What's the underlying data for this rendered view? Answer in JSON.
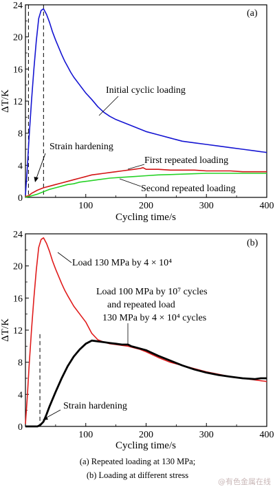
{
  "captions": {
    "line1": "(a) Repeated loading at 130 MPa;",
    "line2": "(b) Loading at different stress"
  },
  "watermark": "@有色金属在线",
  "chart_data": [
    {
      "type": "line",
      "panel_label": "(a)",
      "xlabel": "Cycling time/s",
      "ylabel": "ΔT/K",
      "xlim": [
        0,
        400
      ],
      "ylim": [
        0,
        24
      ],
      "xticks": [
        100,
        200,
        300,
        400
      ],
      "yticks": [
        0,
        4,
        8,
        12,
        16,
        20,
        24
      ],
      "series": [
        {
          "name": "Initial cyclic loading",
          "color": "#1414d2",
          "x": [
            0,
            3,
            6,
            10,
            14,
            18,
            22,
            26,
            30,
            35,
            40,
            45,
            50,
            55,
            60,
            65,
            70,
            75,
            80,
            90,
            100,
            110,
            120,
            130,
            140,
            150,
            160,
            170,
            180,
            190,
            200,
            220,
            240,
            260,
            280,
            300,
            320,
            340,
            360,
            380,
            400
          ],
          "y": [
            0.3,
            3.5,
            7.5,
            12.0,
            16.0,
            19.5,
            22.3,
            23.3,
            23.5,
            22.8,
            21.8,
            20.6,
            19.6,
            18.7,
            17.8,
            17.0,
            16.3,
            15.6,
            15.0,
            14.0,
            13.0,
            12.2,
            11.3,
            10.6,
            10.1,
            9.7,
            9.4,
            9.1,
            8.8,
            8.5,
            8.2,
            7.8,
            7.4,
            7.0,
            6.8,
            6.6,
            6.4,
            6.2,
            6.0,
            5.8,
            5.6
          ]
        },
        {
          "name": "First repeated loading",
          "color": "#d21414",
          "x": [
            0,
            5,
            10,
            20,
            30,
            40,
            50,
            60,
            70,
            80,
            90,
            100,
            110,
            120,
            130,
            140,
            150,
            160,
            170,
            180,
            190,
            195,
            200,
            220,
            240,
            260,
            280,
            300,
            320,
            340,
            360,
            380,
            400
          ],
          "y": [
            0.1,
            0.2,
            0.5,
            0.9,
            1.2,
            1.4,
            1.6,
            1.8,
            2.0,
            2.2,
            2.4,
            2.6,
            2.8,
            2.9,
            3.0,
            3.1,
            3.2,
            3.3,
            3.4,
            3.5,
            3.6,
            3.7,
            3.5,
            3.5,
            3.4,
            3.4,
            3.4,
            3.3,
            3.3,
            3.3,
            3.2,
            3.2,
            3.2
          ]
        },
        {
          "name": "Second repeated loading",
          "color": "#26d226",
          "x": [
            0,
            10,
            20,
            30,
            40,
            50,
            60,
            70,
            80,
            90,
            100,
            120,
            140,
            160,
            180,
            200,
            220,
            240,
            260,
            280,
            300,
            320,
            340,
            360,
            380,
            400
          ],
          "y": [
            0.0,
            0.2,
            0.4,
            0.7,
            1.0,
            1.2,
            1.4,
            1.6,
            1.7,
            1.9,
            2.0,
            2.2,
            2.4,
            2.5,
            2.6,
            2.7,
            2.8,
            2.85,
            2.9,
            2.95,
            3.0,
            3.0,
            3.0,
            3.0,
            3.0,
            3.0
          ]
        }
      ],
      "dashed_lines_x": [
        5,
        30
      ],
      "annotations": [
        {
          "text": "Initial cyclic loading",
          "series": "Initial cyclic loading"
        },
        {
          "text": "Strain hardening"
        },
        {
          "text": "First repeated loading",
          "series": "First repeated loading"
        },
        {
          "text": "Second repeated loading",
          "series": "Second repeated loading"
        }
      ],
      "grid": false
    },
    {
      "type": "line",
      "panel_label": "(b)",
      "xlabel": "Cycling time/s",
      "ylabel": "ΔT/K",
      "xlim": [
        0,
        400
      ],
      "ylim": [
        0,
        24
      ],
      "xticks": [
        100,
        200,
        300,
        400
      ],
      "yticks": [
        0,
        4,
        8,
        12,
        16,
        20,
        24
      ],
      "series": [
        {
          "name": "Load 130 MPa by 4 × 10⁴",
          "color": "#e01b1b",
          "x": [
            0,
            3,
            6,
            10,
            14,
            18,
            22,
            26,
            30,
            35,
            40,
            45,
            50,
            55,
            60,
            65,
            70,
            80,
            90,
            100,
            110,
            120,
            130,
            140,
            150,
            160,
            170,
            180,
            190,
            200,
            220,
            240,
            260,
            280,
            300,
            320,
            340,
            360,
            380,
            400
          ],
          "y": [
            0.3,
            3.5,
            7.5,
            12.0,
            16.0,
            19.5,
            22.3,
            23.3,
            23.5,
            22.8,
            21.8,
            20.6,
            19.6,
            18.7,
            17.8,
            17.0,
            16.3,
            15.0,
            14.0,
            13.0,
            11.6,
            10.8,
            10.5,
            10.3,
            10.2,
            10.1,
            10.0,
            9.8,
            9.6,
            9.3,
            8.6,
            8.0,
            7.6,
            7.2,
            6.8,
            6.5,
            6.2,
            6.0,
            5.8,
            5.6
          ]
        },
        {
          "name": "Load 100 MPa by 10⁷ cycles and repeated load 130 MPa by 4 × 10⁴ cycles",
          "color": "#000000",
          "x": [
            0,
            10,
            20,
            25,
            30,
            35,
            40,
            50,
            60,
            70,
            80,
            90,
            100,
            110,
            120,
            130,
            140,
            150,
            160,
            170,
            175,
            180,
            190,
            200,
            220,
            240,
            260,
            280,
            300,
            320,
            340,
            360,
            380,
            390,
            400
          ],
          "y": [
            0.0,
            0.0,
            0.0,
            0.2,
            0.6,
            1.5,
            2.5,
            4.3,
            6.0,
            7.5,
            8.7,
            9.6,
            10.3,
            10.7,
            10.6,
            10.5,
            10.4,
            10.3,
            10.2,
            10.2,
            10.0,
            9.9,
            9.7,
            9.5,
            8.8,
            8.2,
            7.6,
            7.1,
            6.7,
            6.4,
            6.2,
            6.0,
            5.9,
            6.0,
            6.0
          ]
        }
      ],
      "dashed_lines_x": [
        24
      ],
      "annotations": [
        {
          "text": "Load 130 MPa by 4 × 10⁴"
        },
        {
          "text": "Load 100 MPa by 10⁷ cycles"
        },
        {
          "text": "and repeated load"
        },
        {
          "text": "130 MPa by 4 × 10⁴ cycles"
        },
        {
          "text": "Strain hardening"
        }
      ],
      "grid": false
    }
  ]
}
